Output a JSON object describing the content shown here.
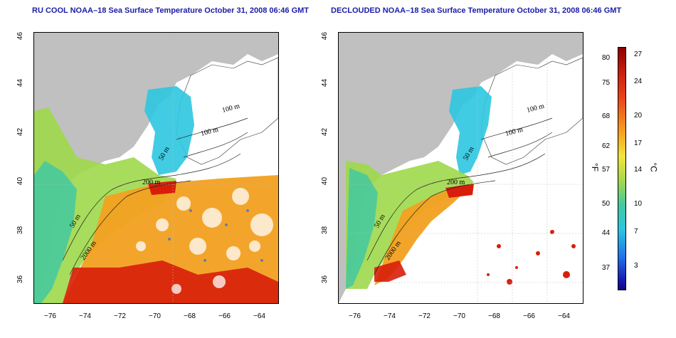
{
  "panels": [
    {
      "title": "RU COOL NOAA–18 Sea Surface Temperature October 31, 2008 06:46 GMT",
      "isobaths": [
        "100 m",
        "100 m",
        "50 m",
        "200 m",
        "50 m",
        "2000 m"
      ]
    },
    {
      "title": "DECLOUDED NOAA–18 Sea Surface Temperature October 31, 2008 06:46 GMT",
      "isobaths": [
        "100 m",
        "100 m",
        "50 m",
        "200 m",
        "50 m",
        "2000 m"
      ]
    }
  ],
  "axes": {
    "x_ticks": [
      "−76",
      "−74",
      "−72",
      "−70",
      "−68",
      "−66",
      "−64"
    ],
    "y_ticks": [
      "46",
      "44",
      "42",
      "40",
      "38",
      "36"
    ]
  },
  "colorbar": {
    "fahrenheit_unit": "°F",
    "celsius_unit": "°C",
    "fahrenheit_ticks": [
      "80",
      "75",
      "68",
      "62",
      "57",
      "50",
      "44",
      "37"
    ],
    "celsius_ticks": [
      "27",
      "24",
      "20",
      "17",
      "14",
      "10",
      "7",
      "3"
    ]
  },
  "colors": {
    "land": "#c0c0c0",
    "title": "#1c1ca8",
    "warm": "#d81e0a",
    "cool": "#2cc6e0"
  }
}
